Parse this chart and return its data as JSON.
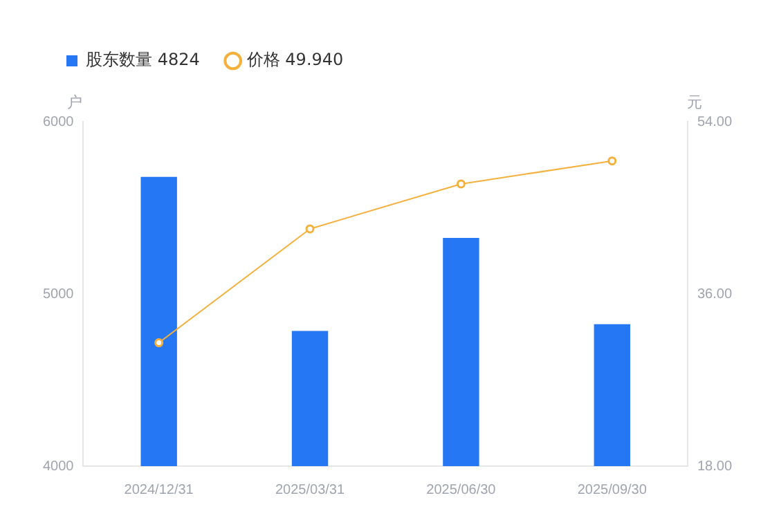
{
  "chart_data": {
    "type": "bar",
    "categories": [
      "2024/12/31",
      "2025/03/31",
      "2025/06/30",
      "2025/09/30"
    ],
    "series": [
      {
        "name": "股东数量 4824",
        "color": "#2577f3",
        "values": [
          5680,
          4785,
          5325,
          4824
        ]
      },
      {
        "name": "价格 49.940",
        "type": "line",
        "axis": "y2",
        "color": "#f5b03c",
        "values": [
          30.9,
          42.8,
          47.5,
          49.9
        ]
      }
    ],
    "ylabel": "户",
    "y2label": "元",
    "ylim": [
      4000,
      6000
    ],
    "yticks": [
      4000,
      5000,
      6000
    ],
    "y2lim": [
      18,
      54
    ],
    "y2ticks": [
      {
        "value": 18,
        "label": "18.00"
      },
      {
        "value": 36,
        "label": "36.00"
      },
      {
        "value": 54,
        "label": "54.00"
      }
    ],
    "grid": false,
    "legend": "top left",
    "marker": "circle"
  }
}
